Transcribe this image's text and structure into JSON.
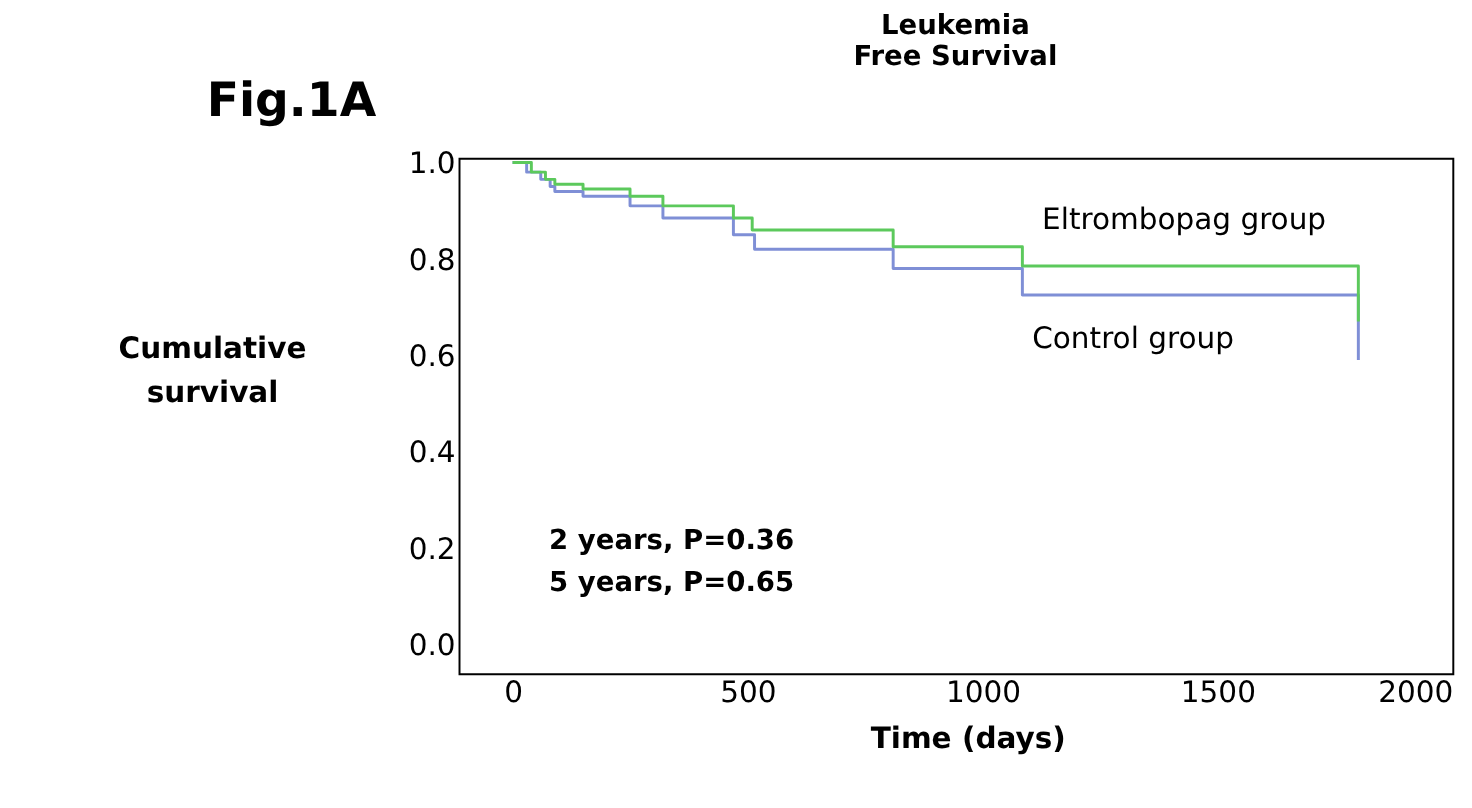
{
  "chart_data": {
    "type": "step",
    "title": "Leukemia Free Survival",
    "xlabel": "Time (days)",
    "ylabel": "Cumulative survival",
    "xlim": [
      -115,
      2000
    ],
    "xticks": [
      0,
      500,
      1000,
      1500,
      2000
    ],
    "ylim": [
      -0.06,
      1.01
    ],
    "yticks": [
      {
        "value": 0,
        "label": "0.0"
      },
      0.2,
      0.4,
      0.6,
      0.8,
      {
        "value": 1,
        "label": "1.0"
      }
    ],
    "grid": false,
    "legend": false,
    "marker": "none",
    "line_style": "solid",
    "annotations": [
      "Fig.1A",
      "2 years, P=0.36",
      "5 years, P=0.65"
    ],
    "series": [
      {
        "name": "Eltrombopag group",
        "color": "#5cc95c",
        "x": [
          0,
          40,
          70,
          90,
          150,
          250,
          320,
          470,
          510,
          810,
          1085,
          1800,
          1800
        ],
        "values": [
          1.0,
          0.98,
          0.965,
          0.955,
          0.945,
          0.93,
          0.91,
          0.885,
          0.86,
          0.825,
          0.785,
          0.785,
          0.67
        ]
      },
      {
        "name": "Control group",
        "color": "#7f8fd6",
        "x": [
          0,
          30,
          60,
          80,
          90,
          150,
          250,
          320,
          470,
          515,
          810,
          1085,
          1800,
          1800
        ],
        "values": [
          1.0,
          0.98,
          0.965,
          0.95,
          0.94,
          0.93,
          0.91,
          0.885,
          0.85,
          0.82,
          0.78,
          0.725,
          0.725,
          0.59
        ]
      }
    ]
  }
}
